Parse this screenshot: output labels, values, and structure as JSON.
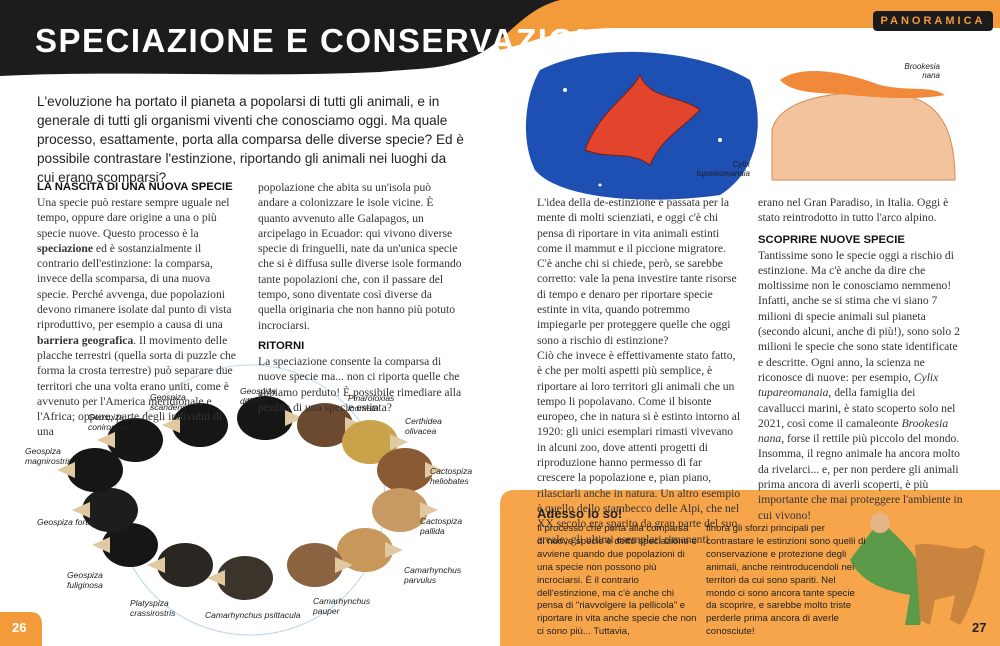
{
  "header": {
    "title": "SPECIAZIONE E CONSERVAZIONE",
    "tag": "PANORAMICA"
  },
  "intro": "L'evoluzione ha portato il pianeta a popolarsi di tutti gli animali, e in generale di tutti gli organismi viventi che conosciamo oggi. Ma quale processo, esattamente, porta alla comparsa delle diverse specie? Ed è possibile contrastare l'estinzione, riportando gli animali nei luoghi da cui erano scomparsi?",
  "left": {
    "heading1": "LA NASCITA DI UNA NUOVA SPECIE",
    "para1": [
      "Una specie può restare sempre uguale nel tempo, oppure dare origine a una o più specie nuove. Questo processo è la ",
      "speciazione",
      " ed è sostanzialmente il contrario dell'estinzione: la comparsa, invece della scomparsa, di una nuova specie. Perché avvenga, due popolazioni devono rimanere isolate dal punto di vista riproduttivo, per esempio a causa di una ",
      "barriera geografica",
      ". Il movimento delle placche terrestri (quella sorta di puzzle che forma la crosta terrestre) può separare due territori che una volta erano uniti, come è avvenuto per l'America meridionale e l'Africa; oppure, parte degli individui di una"
    ],
    "para1_cont": "popolazione che abita su un'isola può andare a colonizzare le isole vicine. È quanto avvenuto alle Galapagos, un arcipelago in Ecuador: qui vivono diverse specie di fringuelli, nate da un'unica specie che si è diffusa sulle diverse isole formando tante popolazioni che, con il passare del tempo, sono diventate così diverse da quella originaria che non hanno più potuto incrociarsi.",
    "heading2": "RITORNI",
    "para2": "La speciazione consente la comparsa di nuove specie ma... non ci riporta quelle che abbiamo perduto! È possibile rimediare alla perdita di una specie estinta?"
  },
  "birds": [
    "Geospiza scandens",
    "Geospiza difficilis",
    "Pinaroloxias inornata",
    "Certhidea olivacea",
    "Cactospiza heliobates",
    "Cactospiza pallida",
    "Camarhynchus parvulus",
    "Camarhynchus pauper",
    "Camarhynchus psittacula",
    "Platyspiza crassirostris",
    "Geospiza fuliginosa",
    "Geospiza fortis",
    "Geospiza magnirostris",
    "Geospiza conirostris"
  ],
  "figures": {
    "seahorse": "Cylix tupareomanaia",
    "chameleon": "Brookesia nana"
  },
  "right": {
    "para1": "L'idea della de-estinzione è passata per la mente di molti scienziati, e oggi c'è chi pensa di riportare in vita animali estinti come il mammut e il piccione migratore. C'è anche chi si chiede, però, se sarebbe corretto: vale la pena investire tante risorse di tempo e denaro per riportare specie estinte in vita, quando potremmo impiegarle per proteggere quelle che oggi sono a rischio di estinzione?",
    "para2": "Ciò che invece è effettivamente stato fatto, è che per molti aspetti più semplice, è riportare ai loro territori gli animali che un tempo li popolavano. Come il bisonte europeo, che in natura si è estinto intorno al 1920: gli unici esemplari rimasti vivevano in alcuni zoo, dove attenti progetti di riproduzione hanno permesso di far crescere la popolazione e, pian piano, rilasciarli anche in natura. Un altro esempio è quello dello stambecco delle Alpi, che nel XX secolo era sparito da gran parte del suo areale; gli ultimi esemplari rimanenti",
    "para2_cont": "erano nel Gran Paradiso, in Italia. Oggi è stato reintrodotto in tutto l'arco alpino.",
    "heading": "SCOPRIRE NUOVE SPECIE",
    "para3": [
      "Tantissime sono le specie oggi a rischio di estinzione. Ma c'è anche da dire che moltissime non le conosciamo nemmeno! Infatti, anche se si stima che vi siano 7 milioni di specie animali sul pianeta (secondo alcuni, anche di più!), sono solo 2 milioni le specie che sono state identificate e descritte. Ogni anno, la scienza ne riconosce di nuove: per esempio, ",
      "Cylix tupareomanaia",
      ", della famiglia dei cavallucci marini, è stato scoperto solo nel 2021, così come il camaleonte ",
      "Brookesia nana",
      ", forse il rettile più piccolo del mondo. Insomma, il regno animale ha ancora molto da rivelarci... e, per non perdere gli animali prima ancora di averli scoperti, è più importante che mai proteggere l'ambiente in cui vivono!"
    ]
  },
  "box": {
    "title": "Adesso lo so!",
    "col1": "Il processo che porta alla comparsa di nuove specie è detto speciazione e avviene quando due popolazioni di una specie non possono più incrociarsi. È il contrario dell'estinzione, ma c'è anche chi pensa di \"riavvolgere la pellicola\" e riportare in vita anche specie che non ci sono più... Tuttavia,",
    "col2": "finora gli sforzi principali per contrastare le estinzioni sono quelli di conservazione e protezione degli animali, anche reintroducendoli nei territori da cui sono spariti. Nel mondo ci sono ancora tante specie da scoprire, e sarebbe molto triste perderle prima ancora di averle conosciute!"
  },
  "page_numbers": {
    "left": "26",
    "right": "27"
  }
}
